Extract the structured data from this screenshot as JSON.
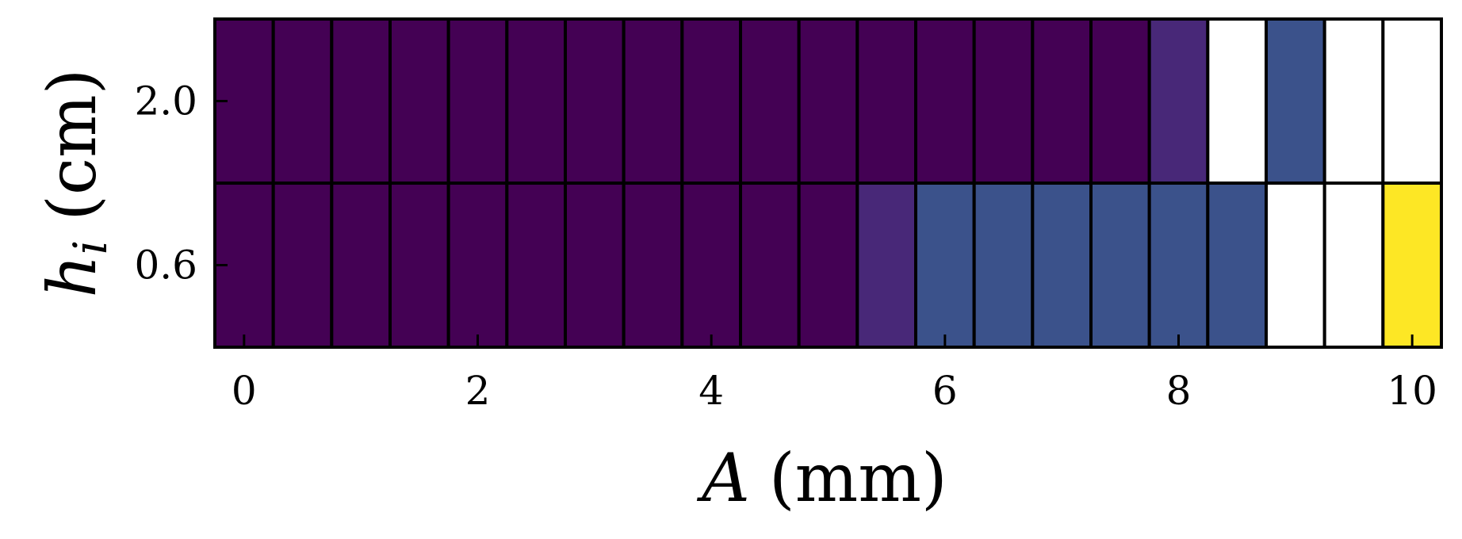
{
  "chart_data": {
    "type": "heatmap",
    "title": "",
    "xlabel": {
      "symbol": "A",
      "unit": "(mm)"
    },
    "ylabel": {
      "symbol": "h",
      "subscript": "i",
      "unit": "(cm)"
    },
    "x": [
      0,
      0.5,
      1,
      1.5,
      2,
      2.5,
      3,
      3.5,
      4,
      4.5,
      5,
      5.5,
      6,
      6.5,
      7,
      7.5,
      8,
      8.5,
      9,
      9.5,
      10
    ],
    "x_ticks": [
      0,
      2,
      4,
      6,
      8,
      10
    ],
    "x_tick_labels": [
      "0",
      "2",
      "4",
      "6",
      "8",
      "10"
    ],
    "xlim": [
      -0.25,
      10.25
    ],
    "y_categories": [
      "0.6",
      "2.0"
    ],
    "y_tick_labels": [
      "2.0",
      "0.6"
    ],
    "rows": [
      {
        "y": "2.0",
        "cells": [
          "c0",
          "c0",
          "c0",
          "c0",
          "c0",
          "c0",
          "c0",
          "c0",
          "c0",
          "c0",
          "c0",
          "c0",
          "c0",
          "c0",
          "c0",
          "c0",
          "c1",
          "nan",
          "c2",
          "nan",
          "nan"
        ]
      },
      {
        "y": "0.6",
        "cells": [
          "c0",
          "c0",
          "c0",
          "c0",
          "c0",
          "c0",
          "c0",
          "c0",
          "c0",
          "c0",
          "c0",
          "c1",
          "c2",
          "c2",
          "c2",
          "c2",
          "c2",
          "c2",
          "nan",
          "nan",
          "c3"
        ]
      }
    ],
    "colors": {
      "c0": "#440154",
      "c1": "#482878",
      "c2": "#3b528b",
      "c3": "#fde725",
      "nan": "#ffffff"
    },
    "grid": false,
    "legend": "none"
  }
}
